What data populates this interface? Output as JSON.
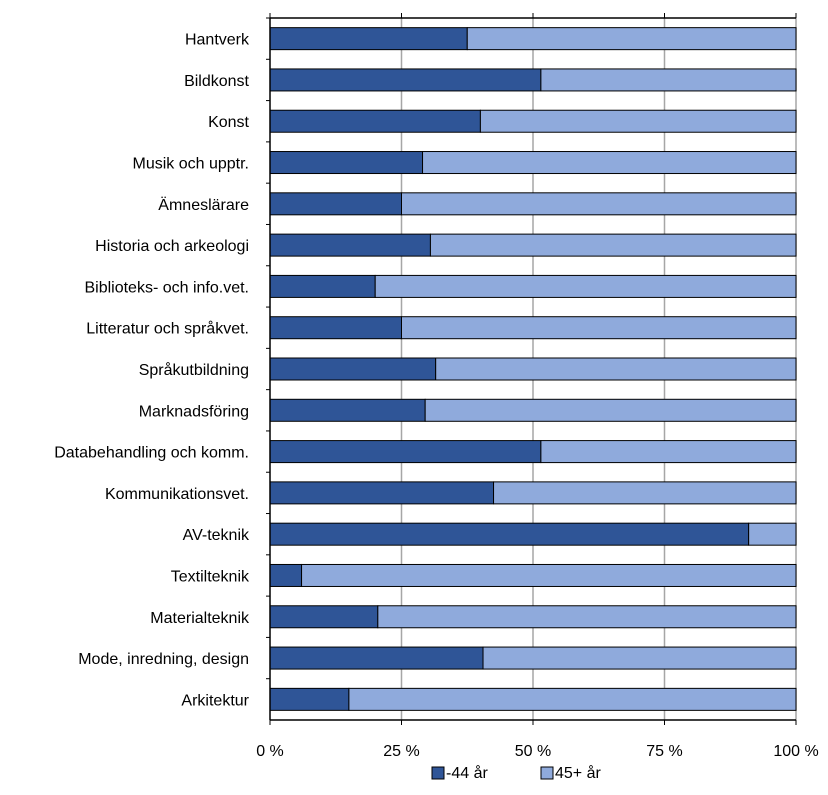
{
  "chart_data": {
    "type": "bar",
    "orientation": "horizontal",
    "stacked": true,
    "categories": [
      "Hantverk",
      "Bildkonst",
      "Konst",
      "Musik och upptr.",
      "Ämneslärare",
      "Historia och arkeologi",
      "Biblioteks- och info.vet.",
      "Litteratur och språkvet.",
      "Språkutbildning",
      "Marknadsföring",
      "Databehandling och komm.",
      "Kommunikationsvet.",
      "AV-teknik",
      "Textilteknik",
      "Materialteknik",
      "Mode, inredning, design",
      "Arkitektur"
    ],
    "series": [
      {
        "name": "-44 år",
        "color": "#2f5597",
        "values": [
          37.5,
          51.5,
          40,
          29,
          25,
          30.5,
          20,
          25,
          31.5,
          29.5,
          51.5,
          42.5,
          91,
          6,
          20.5,
          40.5,
          15
        ]
      },
      {
        "name": "45+ år",
        "color": "#8faadc",
        "values": [
          62.5,
          48.5,
          60,
          71,
          75,
          69.5,
          80,
          75,
          68.5,
          70.5,
          48.5,
          57.5,
          9,
          94,
          79.5,
          59.5,
          85
        ]
      }
    ],
    "xlim": [
      0,
      100
    ],
    "xticks": [
      0,
      25,
      50,
      75,
      100
    ],
    "xtick_labels": [
      "0 %",
      "25 %",
      "50 %",
      "75 %",
      "100 %"
    ],
    "grid": true,
    "legend_position": "bottom",
    "title": "",
    "xlabel": "",
    "ylabel": ""
  }
}
